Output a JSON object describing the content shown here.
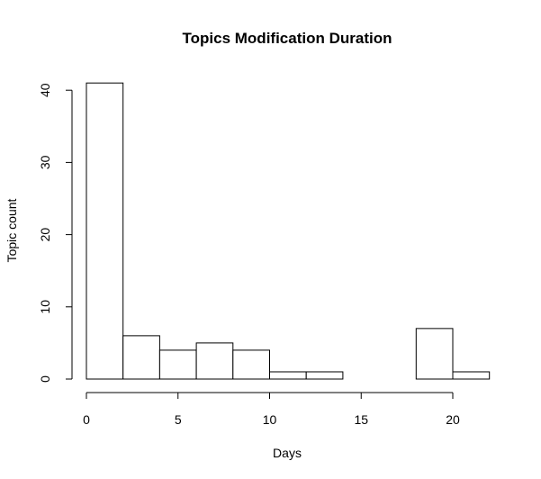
{
  "chart_data": {
    "type": "bar",
    "title": "Topics Modification Duration",
    "xlabel": "Days",
    "ylabel": "Topic count",
    "bins": [
      {
        "x0": 0,
        "x1": 2,
        "count": 41
      },
      {
        "x0": 2,
        "x1": 4,
        "count": 6
      },
      {
        "x0": 4,
        "x1": 6,
        "count": 4
      },
      {
        "x0": 6,
        "x1": 8,
        "count": 5
      },
      {
        "x0": 8,
        "x1": 10,
        "count": 4
      },
      {
        "x0": 10,
        "x1": 12,
        "count": 1
      },
      {
        "x0": 12,
        "x1": 14,
        "count": 1
      },
      {
        "x0": 14,
        "x1": 16,
        "count": 0
      },
      {
        "x0": 16,
        "x1": 18,
        "count": 0
      },
      {
        "x0": 18,
        "x1": 20,
        "count": 7
      },
      {
        "x0": 20,
        "x1": 22,
        "count": 1
      }
    ],
    "xticks": [
      0,
      5,
      10,
      15,
      20
    ],
    "yticks": [
      0,
      10,
      20,
      30,
      40
    ],
    "xlim": [
      0,
      22
    ],
    "ylim": [
      0,
      41
    ],
    "grid": false,
    "bar_fill": "#ffffff",
    "bar_stroke": "#000000"
  }
}
